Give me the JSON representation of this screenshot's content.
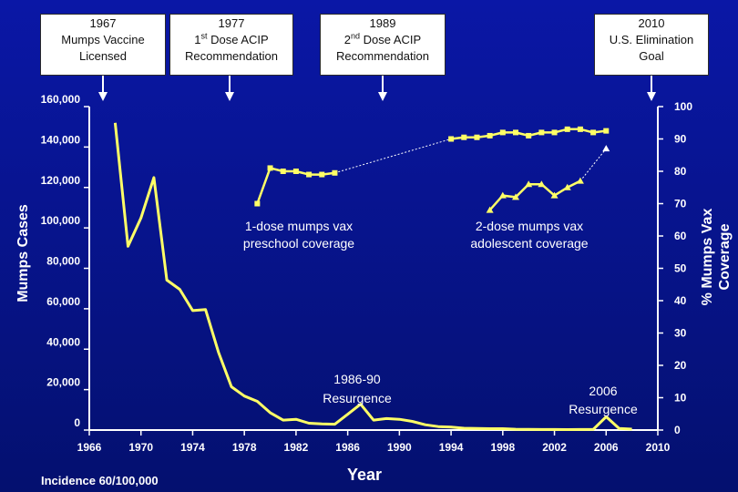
{
  "callouts": [
    {
      "line1": "1967",
      "line2": "Mumps Vaccine",
      "line3": "Licensed"
    },
    {
      "line1": "1977",
      "line2_pre": "1",
      "line2_sup": "st",
      "line2_post": " Dose ACIP",
      "line3": "Recommendation"
    },
    {
      "line1": "1989",
      "line2_pre": "2",
      "line2_sup": "nd",
      "line2_post": " Dose ACIP",
      "line3": "Recommendation"
    },
    {
      "line1": "2010",
      "line2": "U.S. Elimination",
      "line3": "Goal"
    }
  ],
  "footnote": "Incidence 60/100,000",
  "chart_data": {
    "type": "line",
    "xlabel": "Year",
    "ylabel_left": "Mumps Cases",
    "ylabel_right_line1": "% Mumps Vax",
    "ylabel_right_line2": "Coverage",
    "xlim": [
      1966,
      2010
    ],
    "ylim_left": [
      0,
      160000
    ],
    "ylim_right": [
      0,
      100
    ],
    "x_ticks": [
      "1966",
      "1970",
      "1974",
      "1978",
      "1982",
      "1986",
      "1990",
      "1994",
      "1998",
      "2002",
      "2006",
      "2010"
    ],
    "y_left_ticks": [
      "0",
      "20,000",
      "40,000",
      "60,000",
      "80,000",
      "100,000",
      "120,000",
      "140,000",
      "160,000"
    ],
    "y_right_ticks": [
      "0",
      "10",
      "20",
      "30",
      "40",
      "50",
      "60",
      "70",
      "80",
      "90",
      "100"
    ],
    "annotations": [
      {
        "line1": "1-dose mumps vax",
        "line2": "preschool coverage"
      },
      {
        "line1": "2-dose mumps vax",
        "line2": "adolescent coverage"
      },
      {
        "line1": "1986-90",
        "line2": "Resurgence"
      },
      {
        "line1": "2006",
        "line2": "Resurgence"
      }
    ],
    "series": [
      {
        "axis": "left",
        "color": "#ffff66",
        "x": [
          1968,
          1969,
          1970,
          1971,
          1972,
          1973,
          1974,
          1975,
          1976,
          1977,
          1978,
          1979,
          1980,
          1981,
          1982,
          1983,
          1984,
          1985,
          1986,
          1987,
          1988,
          1989,
          1990,
          1991,
          1992,
          1993,
          1994,
          1995,
          1996,
          1997,
          1998,
          1999,
          2000,
          2001,
          2002,
          2003,
          2004,
          2005,
          2006,
          2007,
          2008
        ],
        "values": [
          152000,
          90900,
          104900,
          124900,
          74200,
          69600,
          59100,
          59600,
          38500,
          21400,
          16800,
          14200,
          8600,
          4900,
          5300,
          3400,
          3000,
          2900,
          7800,
          12800,
          4900,
          5700,
          5300,
          4300,
          2600,
          1700,
          1500,
          900,
          750,
          680,
          670,
          390,
          340,
          270,
          270,
          230,
          260,
          310,
          6580,
          800,
          450
        ]
      },
      {
        "axis": "right",
        "color": "#ffff66",
        "marker": "square",
        "x": [
          1979,
          1980,
          1981,
          1982,
          1983,
          1984,
          1985
        ],
        "values": [
          70,
          81,
          80,
          80,
          79,
          79,
          79.5
        ]
      },
      {
        "axis": "right",
        "color": "#ffff66",
        "marker": "square",
        "x": [
          1994,
          1995,
          1996,
          1997,
          1998,
          1999,
          2000,
          2001,
          2002,
          2003,
          2004,
          2005,
          2006
        ],
        "values": [
          90,
          90.5,
          90.5,
          91,
          92,
          92,
          91,
          92,
          92,
          93,
          93,
          92,
          92.5
        ]
      },
      {
        "axis": "right",
        "color": "#ffff66",
        "marker": "triangle",
        "x": [
          1997,
          1998,
          1999,
          2000,
          2001,
          2002,
          2003,
          2004
        ],
        "values": [
          68,
          72.5,
          72,
          76,
          76,
          72.5,
          75,
          77
        ]
      },
      {
        "axis": "right",
        "color": "#ffffff",
        "marker": "triangle",
        "x": [
          2006
        ],
        "values": [
          87
        ]
      }
    ],
    "dotted_links": [
      {
        "axis": "right",
        "x": [
          1985,
          1994
        ],
        "values": [
          79.5,
          90
        ]
      },
      {
        "axis": "right",
        "x": [
          2004,
          2006
        ],
        "values": [
          77,
          87
        ]
      }
    ]
  }
}
